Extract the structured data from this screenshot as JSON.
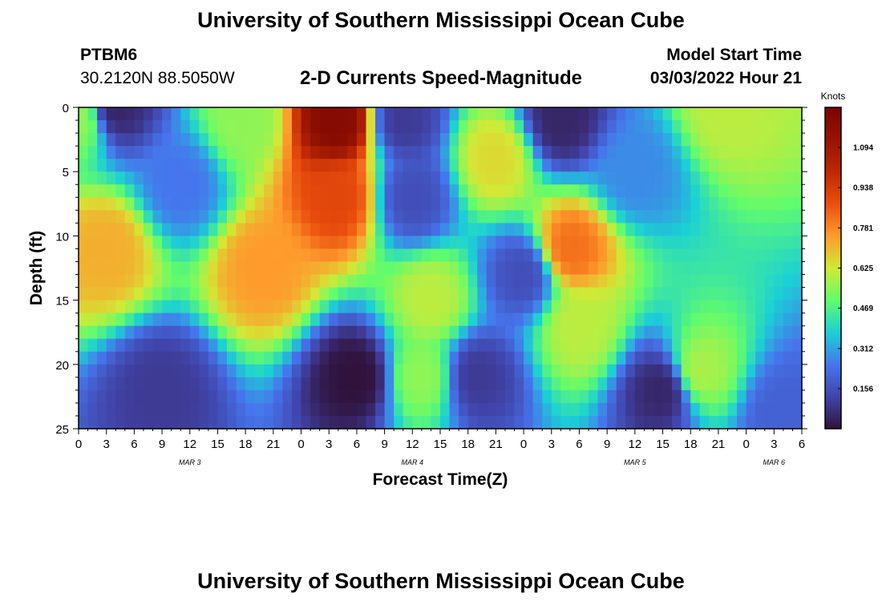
{
  "header": {
    "title": "University of Southern Mississippi Ocean Cube",
    "station": "PTBM6",
    "coordinates": "30.2120N  88.5050W",
    "product": "2-D Currents Speed-Magnitude",
    "model_start_label": "Model Start Time",
    "model_start_value": "03/03/2022 Hour 21",
    "footer_title": "University of Southern Mississippi Ocean Cube"
  },
  "chart_data": {
    "type": "heatmap",
    "title": "2-D Currents Speed-Magnitude",
    "xlabel": "Forecast Time(Z)",
    "ylabel": "Depth (ft)",
    "x_tick_labels": [
      "0",
      "3",
      "6",
      "9",
      "12",
      "15",
      "18",
      "21",
      "0",
      "3",
      "6",
      "9",
      "12",
      "15",
      "18",
      "21",
      "0",
      "3",
      "6",
      "9",
      "12",
      "15",
      "18",
      "21",
      "0",
      "3",
      "6"
    ],
    "x_date_labels": [
      "MAR 3",
      "MAR 4",
      "MAR 5",
      "MAR 6"
    ],
    "y_ticks": [
      0,
      5,
      10,
      15,
      20,
      25
    ],
    "y_range": [
      0,
      25
    ],
    "y_inverted": true,
    "x_range_hours": [
      0,
      78
    ],
    "colorbar": {
      "title": "Knots",
      "tick_labels": [
        "0.156",
        "0.312",
        "0.469",
        "0.625",
        "0.781",
        "0.938",
        "1.094"
      ],
      "range": [
        0,
        1.25
      ]
    },
    "features": [
      {
        "t": 3,
        "d": 11,
        "value": 0.72
      },
      {
        "t": 0,
        "d": 1,
        "value": 0.55
      },
      {
        "t": 4,
        "d": 0,
        "value": 0.05
      },
      {
        "t": 11,
        "d": 6,
        "value": 0.25
      },
      {
        "t": 18,
        "d": 1,
        "value": 0.55
      },
      {
        "t": 28,
        "d": 1,
        "value": 1.2
      },
      {
        "t": 28,
        "d": 7,
        "value": 0.9
      },
      {
        "t": 20,
        "d": 12.5,
        "value": 0.75
      },
      {
        "t": 30,
        "d": 21,
        "value": 0.0
      },
      {
        "t": 9,
        "d": 22,
        "value": 0.1
      },
      {
        "t": 35,
        "d": 1,
        "value": 0.1
      },
      {
        "t": 36,
        "d": 7,
        "value": 0.15
      },
      {
        "t": 38,
        "d": 15,
        "value": 0.6
      },
      {
        "t": 37,
        "d": 21,
        "value": 0.55
      },
      {
        "t": 43,
        "d": 21,
        "value": 0.1
      },
      {
        "t": 45,
        "d": 4,
        "value": 0.65
      },
      {
        "t": 48,
        "d": 13,
        "value": 0.15
      },
      {
        "t": 52,
        "d": 1,
        "value": 0.05
      },
      {
        "t": 53,
        "d": 11,
        "value": 0.82
      },
      {
        "t": 54,
        "d": 17,
        "value": 0.6
      },
      {
        "t": 63,
        "d": 22,
        "value": 0.05
      },
      {
        "t": 67,
        "d": 20.5,
        "value": 0.58
      },
      {
        "t": 70,
        "d": 0,
        "value": 0.6
      },
      {
        "t": 76,
        "d": 24,
        "value": 0.2
      },
      {
        "t": 60,
        "d": 5,
        "value": 0.28
      }
    ]
  }
}
